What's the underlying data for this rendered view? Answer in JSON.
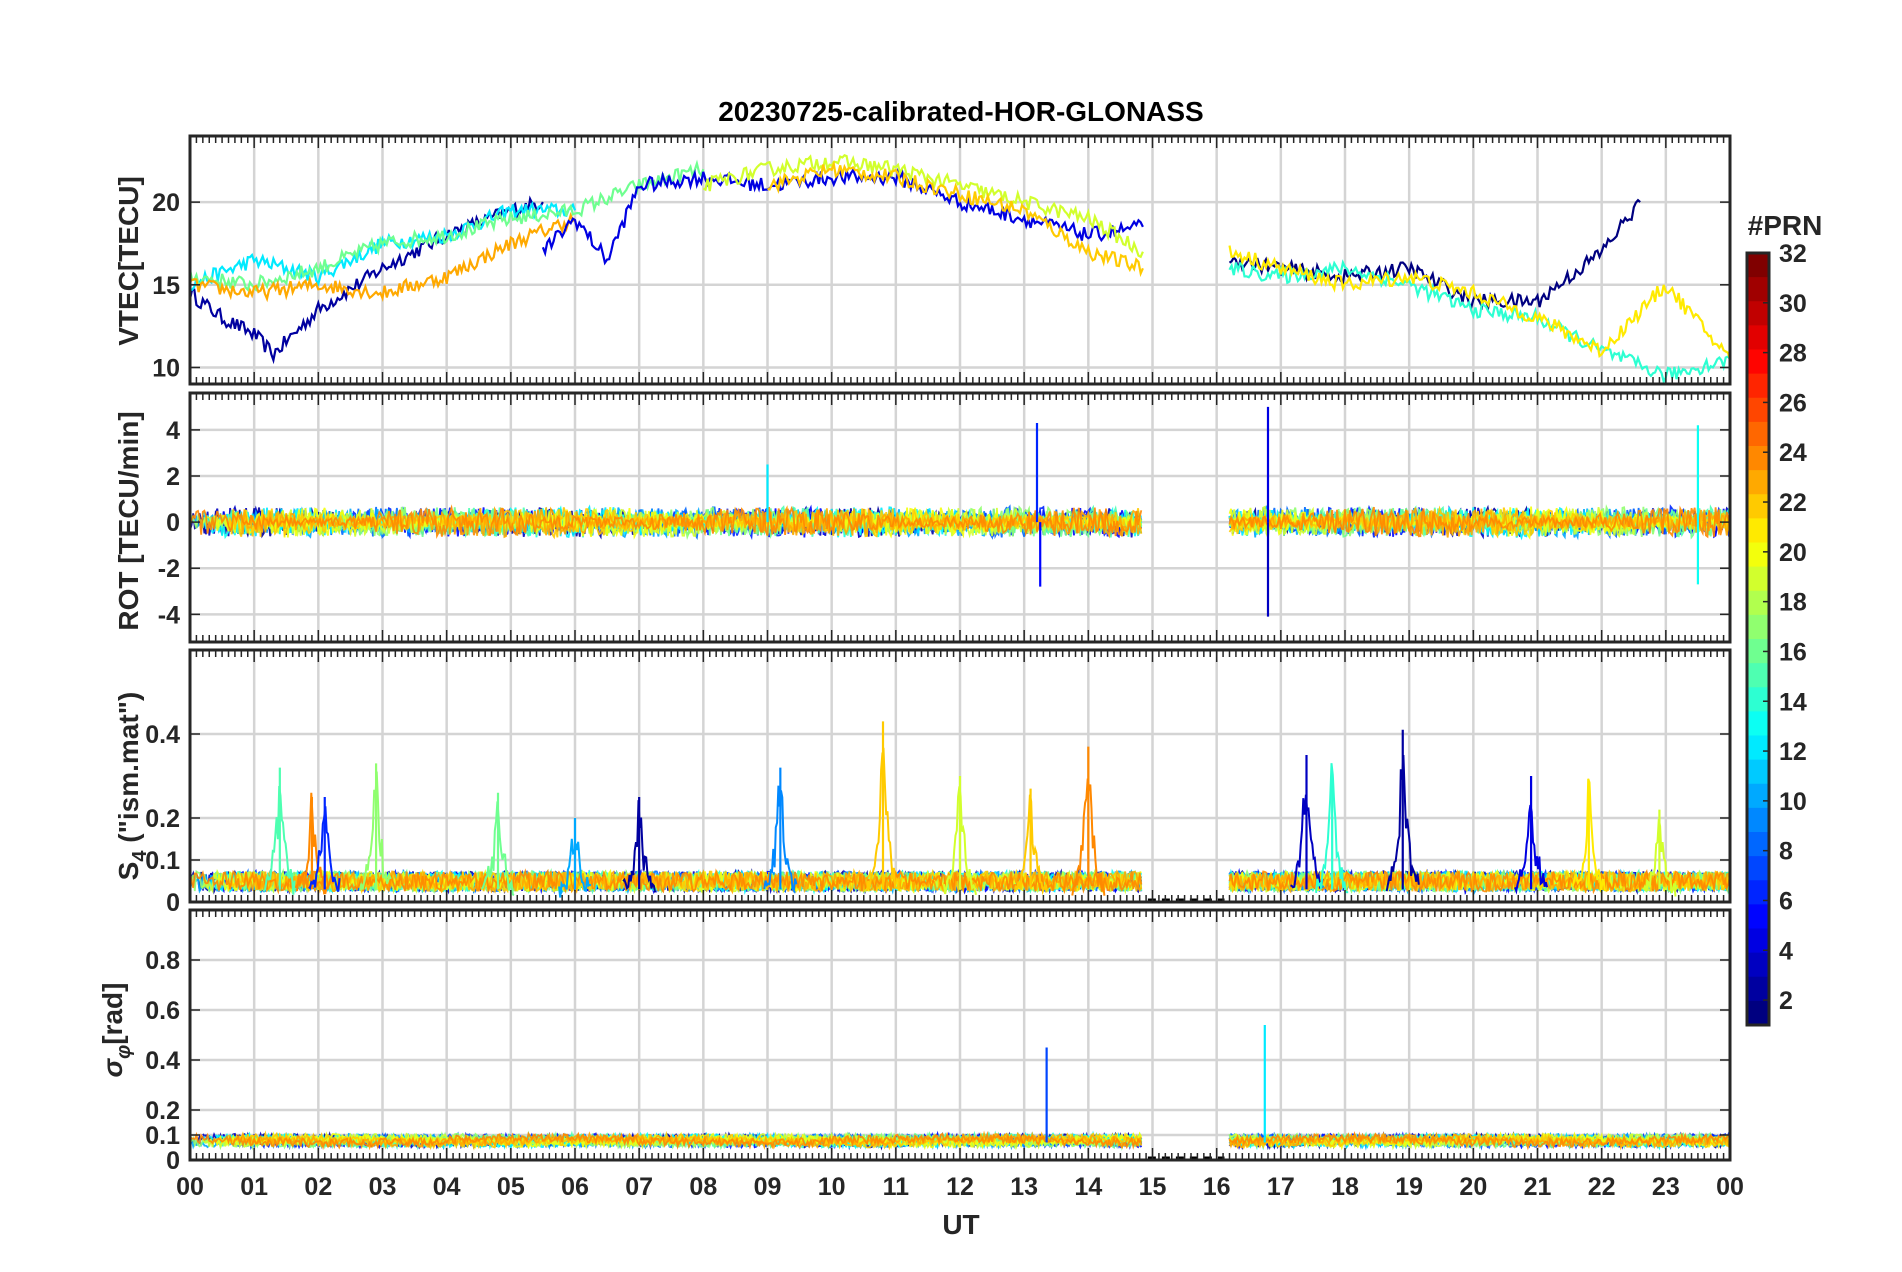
{
  "chart_data": {
    "type": "line",
    "title": "20230725-calibrated-HOR-GLONASS",
    "xlabel": "UT",
    "x_tick_labels": [
      "00",
      "01",
      "02",
      "03",
      "04",
      "05",
      "06",
      "07",
      "08",
      "09",
      "10",
      "11",
      "12",
      "13",
      "14",
      "15",
      "16",
      "17",
      "18",
      "19",
      "20",
      "21",
      "22",
      "23",
      "00"
    ],
    "xlim": [
      0,
      24
    ],
    "data_gap_hours": [
      14.85,
      16.2
    ],
    "grid": true,
    "colorbar": {
      "label": "#PRN",
      "range": [
        1,
        32
      ],
      "colormap": "jet",
      "tick_labels": [
        "2",
        "4",
        "6",
        "8",
        "10",
        "12",
        "14",
        "16",
        "18",
        "20",
        "22",
        "24",
        "26",
        "28",
        "30",
        "32"
      ]
    },
    "panels": [
      {
        "ylabel": "VTEC[TECU]",
        "ylim": [
          9,
          24
        ],
        "yticks": [
          10,
          15,
          20
        ],
        "tick_labels": [
          "10",
          "15",
          "20"
        ],
        "series": [
          {
            "prn": 2,
            "x": [
              0,
              0.5,
              1,
              1.3,
              2,
              3,
              4,
              5,
              5.5
            ],
            "y": [
              14.5,
              13,
              12,
              10.8,
              13.5,
              16,
              18,
              19.5,
              20
            ]
          },
          {
            "prn": 12,
            "x": [
              0,
              1,
              2,
              3,
              4,
              5,
              6
            ],
            "y": [
              15,
              16.5,
              15.5,
              17.5,
              18,
              19.5,
              19.5
            ]
          },
          {
            "prn": 16,
            "x": [
              0,
              1,
              2,
              3,
              4,
              5,
              6,
              7,
              8
            ],
            "y": [
              15.5,
              15,
              16,
              17.5,
              18,
              19,
              19.5,
              21,
              22
            ]
          },
          {
            "prn": 23,
            "x": [
              0,
              1,
              2,
              3,
              4,
              5,
              6
            ],
            "y": [
              15,
              14.5,
              15,
              14.5,
              15.5,
              17.5,
              19
            ]
          },
          {
            "prn": 4,
            "x": [
              5.5,
              6,
              6.5,
              7,
              8,
              9,
              10,
              11,
              12,
              13,
              14,
              14.85
            ],
            "y": [
              17,
              19,
              16.5,
              21,
              21.5,
              21,
              21.5,
              21.5,
              20,
              19,
              18,
              18.5
            ]
          },
          {
            "prn": 19,
            "x": [
              8,
              9,
              10,
              11,
              12,
              13,
              14,
              14.85
            ],
            "y": [
              21,
              22,
              22.5,
              22,
              21,
              20,
              19,
              17
            ]
          },
          {
            "prn": 22,
            "x": [
              9,
              10,
              11,
              12,
              13,
              14,
              14.85
            ],
            "y": [
              21,
              22,
              21.5,
              20.5,
              19.5,
              17,
              16
            ]
          },
          {
            "prn": 1,
            "x": [
              16.2,
              17,
              18,
              19,
              20,
              21,
              22,
              22.6
            ],
            "y": [
              16.5,
              16,
              15.5,
              16,
              14,
              14,
              17,
              20
            ]
          },
          {
            "prn": 14,
            "x": [
              16.2,
              17,
              18,
              19,
              20,
              21,
              22,
              23,
              24
            ],
            "y": [
              16,
              15.5,
              16,
              15,
              13.5,
              13,
              11,
              9.5,
              10.5
            ]
          },
          {
            "prn": 21,
            "x": [
              16.2,
              17,
              18,
              19,
              20,
              21,
              22,
              23,
              24
            ],
            "y": [
              17,
              16,
              15,
              15.5,
              14.5,
              13,
              11,
              15,
              10.5
            ]
          }
        ]
      },
      {
        "ylabel": "ROT [TECU/min]",
        "ylim": [
          -5.2,
          5.6
        ],
        "yticks": [
          -4,
          -2,
          0,
          2,
          4
        ],
        "tick_labels": [
          "-4",
          "-2",
          "0",
          "2",
          "4"
        ],
        "spikes": [
          {
            "prn": 12,
            "x": 9.0,
            "y": 2.5
          },
          {
            "prn": 6,
            "x": 13.2,
            "y": 4.3
          },
          {
            "prn": 5,
            "x": 13.25,
            "y": -2.8
          },
          {
            "prn": 4,
            "x": 16.8,
            "y": 5.0
          },
          {
            "prn": 3,
            "x": 16.8,
            "y": -4.1
          },
          {
            "prn": 13,
            "x": 23.5,
            "y": 4.2
          },
          {
            "prn": 13,
            "x": 23.5,
            "y": -2.7
          }
        ]
      },
      {
        "ylabel": "S4 (\"ism.mat\")",
        "ylim": [
          0,
          0.6
        ],
        "yticks": [
          0,
          0.1,
          0.2,
          0.4
        ],
        "tick_labels": [
          "0",
          "0.1",
          "0.2",
          "0.4"
        ],
        "spikes": [
          {
            "prn": 15,
            "x": 1.4,
            "y": 0.32
          },
          {
            "prn": 24,
            "x": 1.9,
            "y": 0.25
          },
          {
            "prn": 6,
            "x": 2.1,
            "y": 0.25
          },
          {
            "prn": 17,
            "x": 2.9,
            "y": 0.33
          },
          {
            "prn": 16,
            "x": 4.8,
            "y": 0.26
          },
          {
            "prn": 10,
            "x": 6.0,
            "y": 0.2
          },
          {
            "prn": 2,
            "x": 7.0,
            "y": 0.25
          },
          {
            "prn": 9,
            "x": 9.2,
            "y": 0.32
          },
          {
            "prn": 22,
            "x": 10.8,
            "y": 0.43
          },
          {
            "prn": 19,
            "x": 12.0,
            "y": 0.3
          },
          {
            "prn": 22,
            "x": 13.1,
            "y": 0.27
          },
          {
            "prn": 24,
            "x": 14.0,
            "y": 0.37
          },
          {
            "prn": 3,
            "x": 17.4,
            "y": 0.35
          },
          {
            "prn": 14,
            "x": 17.8,
            "y": 0.3
          },
          {
            "prn": 2,
            "x": 18.9,
            "y": 0.41
          },
          {
            "prn": 4,
            "x": 20.9,
            "y": 0.3
          },
          {
            "prn": 21,
            "x": 21.8,
            "y": 0.28
          },
          {
            "prn": 19,
            "x": 22.9,
            "y": 0.22
          }
        ]
      },
      {
        "ylabel": "σφ[rad]",
        "ylim": [
          0,
          1.0
        ],
        "yticks": [
          0,
          0.1,
          0.2,
          0.4,
          0.6,
          0.8
        ],
        "tick_labels": [
          "0",
          "0.1",
          "0.2",
          "0.4",
          "0.6",
          "0.8"
        ],
        "spikes": [
          {
            "prn": 7,
            "x": 13.35,
            "y": 0.45
          },
          {
            "prn": 12,
            "x": 16.75,
            "y": 0.54
          }
        ]
      }
    ]
  }
}
